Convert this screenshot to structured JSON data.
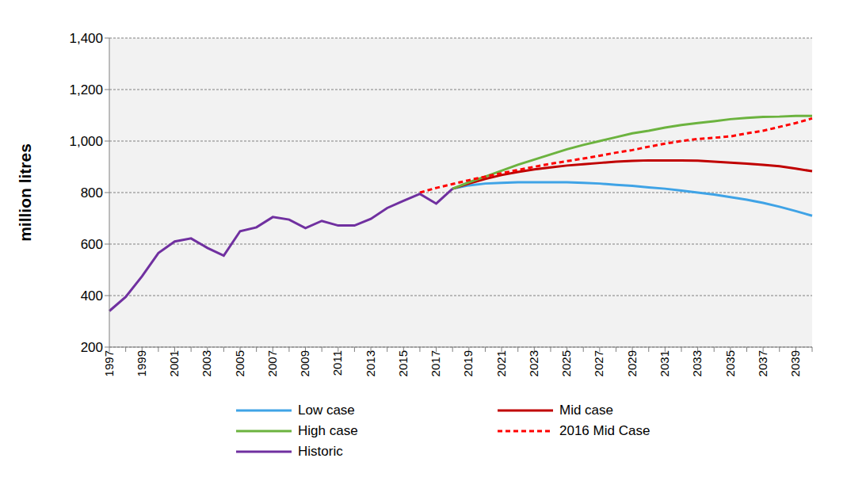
{
  "chart_data": {
    "type": "line",
    "y_label": "million litres",
    "categories": [
      "1997",
      null,
      "1999",
      null,
      "2001",
      null,
      "2003",
      null,
      "2005",
      null,
      "2007",
      null,
      "2009",
      null,
      "2011",
      null,
      "2013",
      null,
      "2015",
      null,
      "2017",
      null,
      "2019",
      null,
      "2021",
      null,
      "2023",
      null,
      "2025",
      null,
      "2027",
      null,
      "2029",
      null,
      "2031",
      null,
      "2033",
      null,
      "2035",
      null,
      "2037",
      null,
      "2039",
      null
    ],
    "series": [
      {
        "name": "Low case",
        "color": "#3fa3e6",
        "line_style": "solid",
        "values": [
          null,
          null,
          null,
          null,
          null,
          null,
          null,
          null,
          null,
          null,
          null,
          null,
          null,
          null,
          null,
          null,
          null,
          null,
          null,
          null,
          null,
          815,
          828,
          835,
          838,
          840,
          840,
          840,
          840,
          838,
          835,
          830,
          826,
          820,
          815,
          808,
          800,
          792,
          782,
          772,
          760,
          745,
          728,
          710
        ]
      },
      {
        "name": "Mid case",
        "color": "#c00000",
        "line_style": "solid",
        "values": [
          null,
          null,
          null,
          null,
          null,
          null,
          null,
          null,
          null,
          null,
          null,
          null,
          null,
          null,
          null,
          null,
          null,
          null,
          null,
          null,
          null,
          815,
          835,
          853,
          868,
          880,
          890,
          898,
          905,
          910,
          915,
          920,
          923,
          925,
          925,
          925,
          924,
          920,
          916,
          912,
          908,
          902,
          893,
          883
        ]
      },
      {
        "name": "High case",
        "color": "#6cb33f",
        "line_style": "solid",
        "values": [
          null,
          null,
          null,
          null,
          null,
          null,
          null,
          null,
          null,
          null,
          null,
          null,
          null,
          null,
          null,
          null,
          null,
          null,
          null,
          null,
          null,
          815,
          840,
          862,
          885,
          908,
          928,
          948,
          968,
          985,
          1000,
          1015,
          1030,
          1040,
          1052,
          1062,
          1070,
          1077,
          1085,
          1090,
          1094,
          1095,
          1098,
          1098
        ]
      },
      {
        "name": "2016 Mid Case",
        "color": "#ff0000",
        "line_style": "dashed",
        "values": [
          null,
          null,
          null,
          null,
          null,
          null,
          null,
          null,
          null,
          null,
          null,
          null,
          null,
          null,
          null,
          null,
          null,
          null,
          null,
          800,
          818,
          833,
          848,
          862,
          875,
          888,
          900,
          912,
          922,
          932,
          943,
          955,
          965,
          978,
          990,
          1000,
          1008,
          1013,
          1018,
          1030,
          1040,
          1055,
          1070,
          1088
        ]
      },
      {
        "name": "Historic",
        "color": "#7030a0",
        "line_style": "solid",
        "values": [
          340,
          395,
          475,
          565,
          610,
          622,
          585,
          555,
          650,
          665,
          705,
          695,
          662,
          690,
          672,
          672,
          698,
          740,
          768,
          795,
          757,
          815,
          null,
          null,
          null,
          null,
          null,
          null,
          null,
          null,
          null,
          null,
          null,
          null,
          null,
          null,
          null,
          null,
          null,
          null,
          null,
          null,
          null,
          null
        ]
      }
    ],
    "ylim": [
      200,
      1400
    ],
    "yticks": [
      200,
      400,
      600,
      800,
      {
        "value": 1000,
        "label": "1,000"
      },
      {
        "value": 1200,
        "label": "1,200"
      },
      {
        "value": 1400,
        "label": "1,400"
      }
    ],
    "grid": true,
    "legend": "bottom"
  }
}
